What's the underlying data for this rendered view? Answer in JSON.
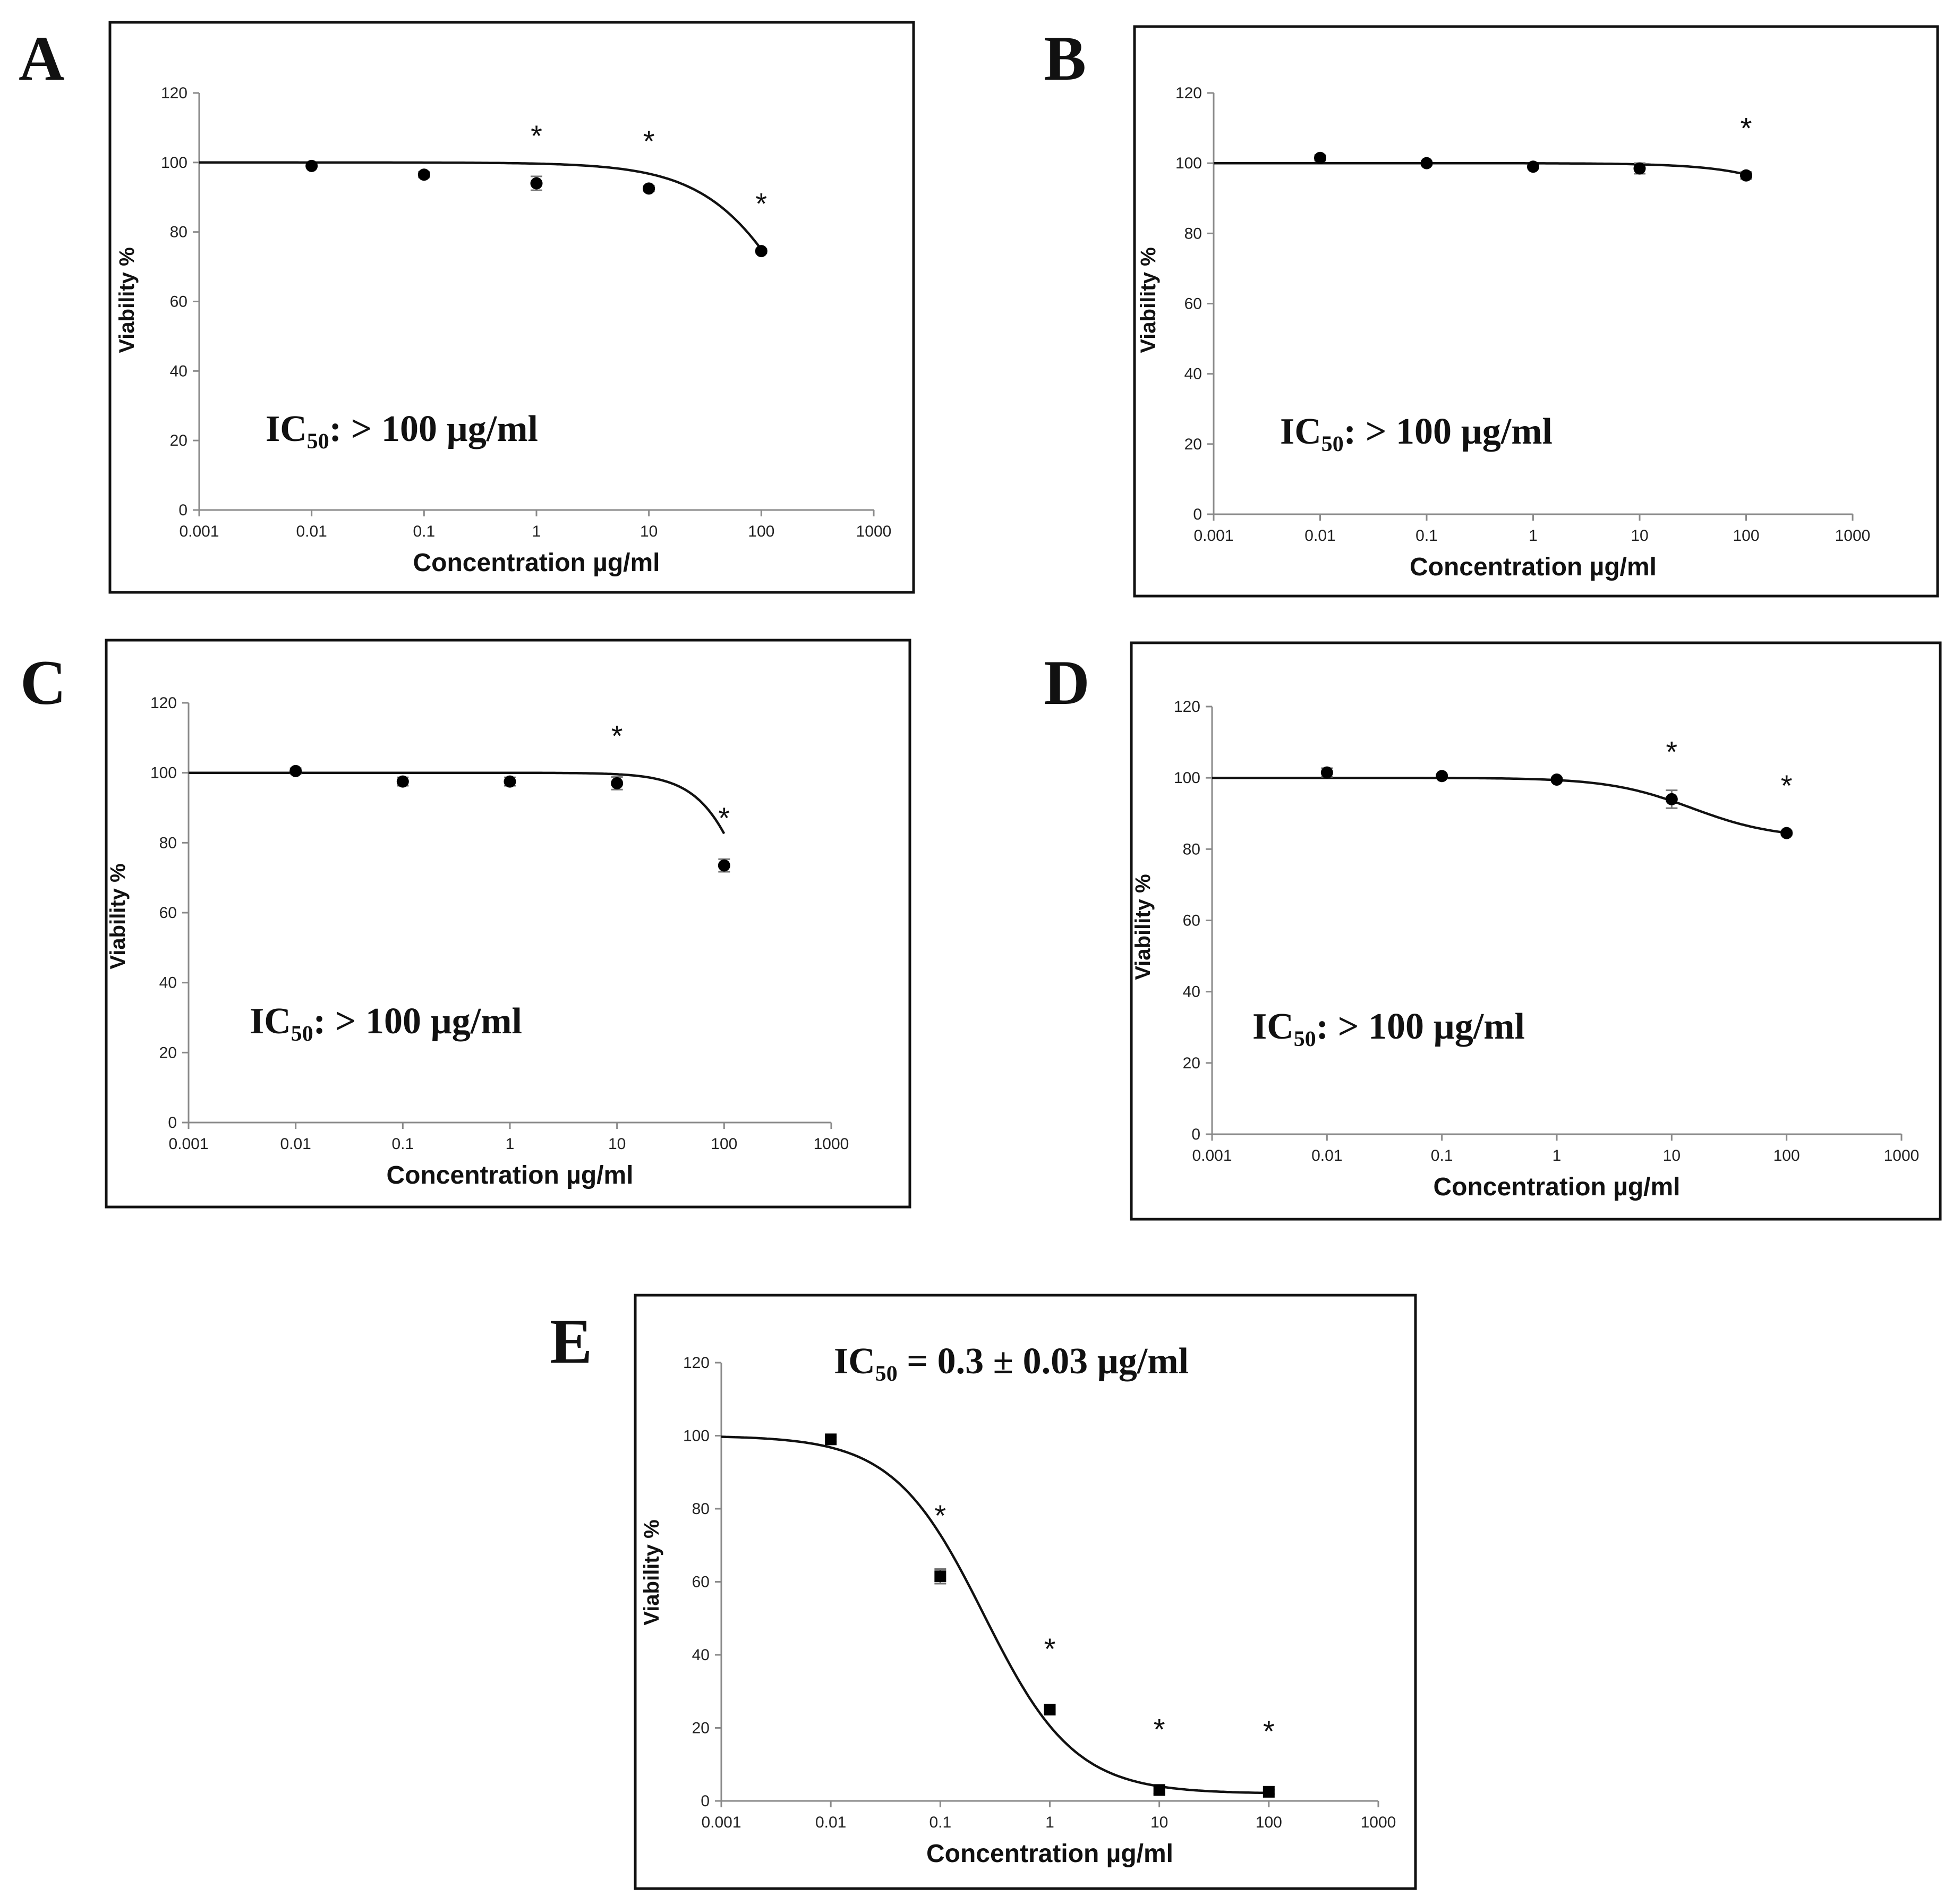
{
  "figure_title": "",
  "chart_data": [
    {
      "panel": "A",
      "type": "scatter",
      "xscale": "log",
      "xlim": [
        0.001,
        1000
      ],
      "ylim": [
        0,
        120
      ],
      "xticks": [
        "0.001",
        "0.01",
        "0.1",
        "1",
        "10",
        "100",
        "1000"
      ],
      "yticks": [
        "0",
        "20",
        "40",
        "60",
        "80",
        "100",
        "120"
      ],
      "xlabel": "Concentration µg/ml",
      "ylabel": "Viability %",
      "annotation": "IC₅₀: > 100 µg/ml",
      "marker": "circle",
      "points": [
        {
          "x": 0.01,
          "y": 99,
          "err": 0,
          "sig": false
        },
        {
          "x": 0.1,
          "y": 96.5,
          "err": 0.8,
          "sig": false
        },
        {
          "x": 1,
          "y": 94,
          "err": 2,
          "sig": true
        },
        {
          "x": 10,
          "y": 92.5,
          "err": 0.8,
          "sig": true
        },
        {
          "x": 100,
          "y": 74.5,
          "err": 0.6,
          "sig": true
        }
      ],
      "fit": {
        "top": 100,
        "bottom": 0,
        "ic50": 300,
        "hill": 1
      }
    },
    {
      "panel": "B",
      "type": "scatter",
      "xscale": "log",
      "xlim": [
        0.001,
        1000
      ],
      "ylim": [
        0,
        120
      ],
      "xticks": [
        "0.001",
        "0.01",
        "0.1",
        "1",
        "10",
        "100",
        "1000"
      ],
      "yticks": [
        "0",
        "20",
        "40",
        "60",
        "80",
        "100",
        "120"
      ],
      "xlabel": "Concentration µg/ml",
      "ylabel": "Viability %",
      "annotation": "IC₅₀: > 100 µg/ml",
      "marker": "circle",
      "points": [
        {
          "x": 0.01,
          "y": 101.5,
          "err": 0.8,
          "sig": false
        },
        {
          "x": 0.1,
          "y": 100,
          "err": 0.5,
          "sig": false
        },
        {
          "x": 1,
          "y": 99,
          "err": 0.5,
          "sig": false
        },
        {
          "x": 10,
          "y": 98.5,
          "err": 1.5,
          "sig": false
        },
        {
          "x": 100,
          "y": 96.5,
          "err": 1,
          "sig": true
        }
      ],
      "fit": {
        "top": 100,
        "bottom": 0,
        "ic50": 3000,
        "hill": 1
      }
    },
    {
      "panel": "C",
      "type": "scatter",
      "xscale": "log",
      "xlim": [
        0.001,
        1000
      ],
      "ylim": [
        0,
        120
      ],
      "xticks": [
        "0.001",
        "0.01",
        "0.1",
        "1",
        "10",
        "100",
        "1000"
      ],
      "yticks": [
        "0",
        "20",
        "40",
        "60",
        "80",
        "100",
        "120"
      ],
      "xlabel": "Concentration µg/ml",
      "ylabel": "Viability %",
      "annotation": "IC₅₀: > 100 µg/ml",
      "marker": "circle",
      "points": [
        {
          "x": 0.01,
          "y": 100.5,
          "err": 0.8,
          "sig": false
        },
        {
          "x": 0.1,
          "y": 97.5,
          "err": 1.2,
          "sig": false
        },
        {
          "x": 1,
          "y": 97.5,
          "err": 1.2,
          "sig": false
        },
        {
          "x": 10,
          "y": 97,
          "err": 1.8,
          "sig": true
        },
        {
          "x": 100,
          "y": 73.5,
          "err": 1.8,
          "sig": true
        }
      ],
      "fit": {
        "top": 100,
        "bottom": 0,
        "ic50": 250,
        "hill": 1.7
      }
    },
    {
      "panel": "D",
      "type": "scatter",
      "xscale": "log",
      "xlim": [
        0.001,
        1000
      ],
      "ylim": [
        0,
        120
      ],
      "xticks": [
        "0.001",
        "0.01",
        "0.1",
        "1",
        "10",
        "100",
        "1000"
      ],
      "yticks": [
        "0",
        "20",
        "40",
        "60",
        "80",
        "100",
        "120"
      ],
      "xlabel": "Concentration µg/ml",
      "ylabel": "Viability %",
      "annotation": "IC₅₀: > 100 µg/ml",
      "marker": "circle",
      "points": [
        {
          "x": 0.01,
          "y": 101.5,
          "err": 1.2,
          "sig": false
        },
        {
          "x": 0.1,
          "y": 100.5,
          "err": 0.5,
          "sig": false
        },
        {
          "x": 1,
          "y": 99.5,
          "err": 0.5,
          "sig": false
        },
        {
          "x": 10,
          "y": 94,
          "err": 2.5,
          "sig": true
        },
        {
          "x": 100,
          "y": 84.5,
          "err": 0.6,
          "sig": true
        }
      ],
      "fit": {
        "top": 100,
        "bottom": 83,
        "ic50": 15,
        "hill": 1.2
      }
    },
    {
      "panel": "E",
      "type": "scatter",
      "xscale": "log",
      "xlim": [
        0.001,
        1000
      ],
      "ylim": [
        0,
        120
      ],
      "xticks": [
        "0.001",
        "0.01",
        "0.1",
        "1",
        "10",
        "100",
        "1000"
      ],
      "yticks": [
        "0",
        "20",
        "40",
        "60",
        "80",
        "100",
        "120"
      ],
      "xlabel": "Concentration µg/ml",
      "ylabel": "Viability %",
      "annotation": "IC₅₀ = 0.3 ± 0.03 µg/ml",
      "marker": "square",
      "points": [
        {
          "x": 0.01,
          "y": 99,
          "err": 0.6,
          "sig": false
        },
        {
          "x": 0.1,
          "y": 61.5,
          "err": 2,
          "sig": true
        },
        {
          "x": 1,
          "y": 25,
          "err": 0.8,
          "sig": true
        },
        {
          "x": 10,
          "y": 3,
          "err": 1,
          "sig": true
        },
        {
          "x": 100,
          "y": 2.5,
          "err": 0.6,
          "sig": true
        }
      ],
      "fit": {
        "top": 100,
        "bottom": 2,
        "ic50": 0.25,
        "hill": 1.05
      }
    }
  ]
}
